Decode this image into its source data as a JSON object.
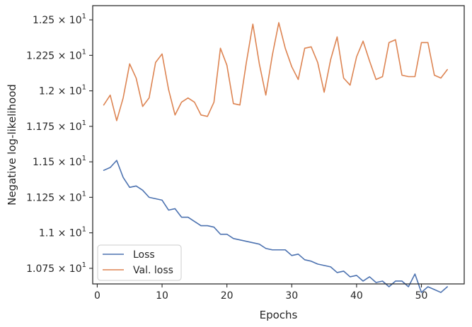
{
  "chart_data": {
    "type": "line",
    "xlabel": "Epochs",
    "ylabel": "Negative log-likelihood",
    "xlim": [
      -0.7,
      56.6
    ],
    "ylim": [
      10.64,
      12.6
    ],
    "x_ticks": [
      0,
      10,
      20,
      30,
      40,
      50
    ],
    "x_tick_labels": [
      "0",
      "10",
      "20",
      "30",
      "40",
      "50"
    ],
    "y_ticks": [
      10.75,
      11.0,
      11.25,
      11.5,
      11.75,
      12.0,
      12.25,
      12.5
    ],
    "y_tick_labels": [
      {
        "mantissa": "1.075",
        "base": "10",
        "exp": "1"
      },
      {
        "mantissa": "1.1",
        "base": "10",
        "exp": "1"
      },
      {
        "mantissa": "1.125",
        "base": "10",
        "exp": "1"
      },
      {
        "mantissa": "1.15",
        "base": "10",
        "exp": "1"
      },
      {
        "mantissa": "1.175",
        "base": "10",
        "exp": "1"
      },
      {
        "mantissa": "1.2",
        "base": "10",
        "exp": "1"
      },
      {
        "mantissa": "1.225",
        "base": "10",
        "exp": "1"
      },
      {
        "mantissa": "1.25",
        "base": "10",
        "exp": "1"
      }
    ],
    "grid": false,
    "legend_position": "lower-left",
    "x": [
      1,
      2,
      3,
      4,
      5,
      6,
      7,
      8,
      9,
      10,
      11,
      12,
      13,
      14,
      15,
      16,
      17,
      18,
      19,
      20,
      21,
      22,
      23,
      24,
      25,
      26,
      27,
      28,
      29,
      30,
      31,
      32,
      33,
      34,
      35,
      36,
      37,
      38,
      39,
      40,
      41,
      42,
      43,
      44,
      45,
      46,
      47,
      48,
      49,
      50,
      51,
      52,
      53,
      54
    ],
    "series": [
      {
        "name": "Loss",
        "color": "#4c72b0",
        "values": [
          11.44,
          11.46,
          11.51,
          11.39,
          11.32,
          11.33,
          11.3,
          11.25,
          11.24,
          11.23,
          11.16,
          11.17,
          11.11,
          11.11,
          11.08,
          11.05,
          11.05,
          11.04,
          10.99,
          10.99,
          10.96,
          10.95,
          10.94,
          10.93,
          10.92,
          10.89,
          10.88,
          10.88,
          10.88,
          10.84,
          10.85,
          10.81,
          10.8,
          10.78,
          10.77,
          10.76,
          10.72,
          10.73,
          10.69,
          10.7,
          10.66,
          10.69,
          10.65,
          10.66,
          10.62,
          10.66,
          10.66,
          10.62,
          10.71,
          10.58,
          10.62,
          10.6,
          10.58,
          10.62
        ]
      },
      {
        "name": "Val. loss",
        "color": "#dd8452",
        "values": [
          11.9,
          11.97,
          11.79,
          11.95,
          12.19,
          12.09,
          11.89,
          11.95,
          12.2,
          12.26,
          12.01,
          11.83,
          11.92,
          11.95,
          11.92,
          11.83,
          11.82,
          11.92,
          12.3,
          12.18,
          11.91,
          11.9,
          12.2,
          12.47,
          12.19,
          11.97,
          12.25,
          12.48,
          12.3,
          12.17,
          12.08,
          12.3,
          12.31,
          12.2,
          11.99,
          12.22,
          12.38,
          12.09,
          12.04,
          12.24,
          12.35,
          12.21,
          12.08,
          12.1,
          12.34,
          12.36,
          12.11,
          12.1,
          12.1,
          12.34,
          12.34,
          12.11,
          12.09,
          12.15
        ]
      }
    ]
  }
}
